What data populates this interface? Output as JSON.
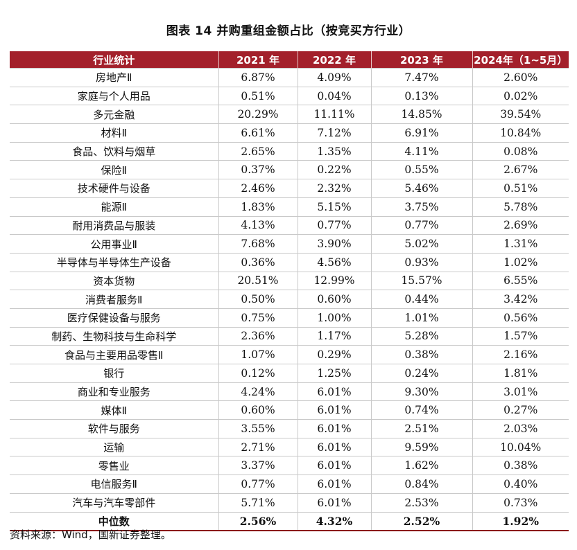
{
  "title": "图表 14  并购重组金额占比（按竞买方行业）",
  "table": {
    "headers": [
      "行业统计",
      "2021 年",
      "2022 年",
      "2023 年",
      "2024年（1~5月）"
    ],
    "rows": [
      [
        "房地产Ⅱ",
        "6.87%",
        "4.09%",
        "7.47%",
        "2.60%"
      ],
      [
        "家庭与个人用品",
        "0.51%",
        "0.04%",
        "0.13%",
        "0.02%"
      ],
      [
        "多元金融",
        "20.29%",
        "11.11%",
        "14.85%",
        "39.54%"
      ],
      [
        "材料Ⅱ",
        "6.61%",
        "7.12%",
        "6.91%",
        "10.84%"
      ],
      [
        "食品、饮料与烟草",
        "2.65%",
        "1.35%",
        "4.11%",
        "0.08%"
      ],
      [
        "保险Ⅱ",
        "0.37%",
        "0.22%",
        "0.55%",
        "2.67%"
      ],
      [
        "技术硬件与设备",
        "2.46%",
        "2.32%",
        "5.46%",
        "0.51%"
      ],
      [
        "能源Ⅱ",
        "1.83%",
        "5.15%",
        "3.75%",
        "5.78%"
      ],
      [
        "耐用消费品与服装",
        "4.13%",
        "0.77%",
        "0.77%",
        "2.69%"
      ],
      [
        "公用事业Ⅱ",
        "7.68%",
        "3.90%",
        "5.02%",
        "1.31%"
      ],
      [
        "半导体与半导体生产设备",
        "0.36%",
        "4.56%",
        "0.93%",
        "1.02%"
      ],
      [
        "资本货物",
        "20.51%",
        "12.99%",
        "15.57%",
        "6.55%"
      ],
      [
        "消费者服务Ⅱ",
        "0.50%",
        "0.60%",
        "0.44%",
        "3.42%"
      ],
      [
        "医疗保健设备与服务",
        "0.75%",
        "1.00%",
        "1.01%",
        "0.56%"
      ],
      [
        "制药、生物科技与生命科学",
        "2.36%",
        "1.17%",
        "5.28%",
        "1.57%"
      ],
      [
        "食品与主要用品零售Ⅱ",
        "1.07%",
        "0.29%",
        "0.38%",
        "2.16%"
      ],
      [
        "银行",
        "0.12%",
        "1.25%",
        "0.24%",
        "1.81%"
      ],
      [
        "商业和专业服务",
        "4.24%",
        "6.01%",
        "9.30%",
        "3.01%"
      ],
      [
        "媒体Ⅱ",
        "0.60%",
        "6.01%",
        "0.74%",
        "0.27%"
      ],
      [
        "软件与服务",
        "3.55%",
        "6.01%",
        "2.51%",
        "2.03%"
      ],
      [
        "运输",
        "2.71%",
        "6.01%",
        "9.59%",
        "10.04%"
      ],
      [
        "零售业",
        "3.37%",
        "6.01%",
        "1.62%",
        "0.38%"
      ],
      [
        "电信服务Ⅱ",
        "0.77%",
        "6.01%",
        "0.84%",
        "0.40%"
      ],
      [
        "汽车与汽车零部件",
        "5.71%",
        "6.01%",
        "2.53%",
        "0.73%"
      ]
    ],
    "median": [
      "中位数",
      "2.56%",
      "4.32%",
      "2.52%",
      "1.92%"
    ]
  },
  "source": "资料来源：Wind，国新证券整理。",
  "colors": {
    "header_bg": "#a3202b",
    "header_text": "#ffffff"
  }
}
